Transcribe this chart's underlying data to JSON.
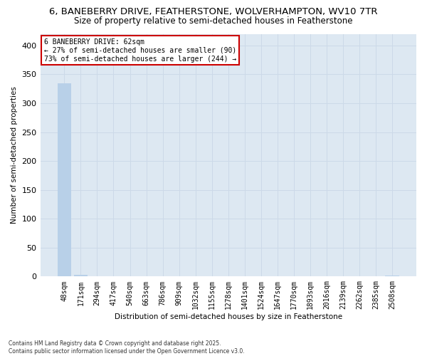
{
  "title1": "6, BANEBERRY DRIVE, FEATHERSTONE, WOLVERHAMPTON, WV10 7TR",
  "title2": "Size of property relative to semi-detached houses in Featherstone",
  "xlabel": "Distribution of semi-detached houses by size in Featherstone",
  "ylabel": "Number of semi-detached properties",
  "footnote": "Contains HM Land Registry data © Crown copyright and database right 2025.\nContains public sector information licensed under the Open Government Licence v3.0.",
  "bin_labels": [
    "48sqm",
    "171sqm",
    "294sqm",
    "417sqm",
    "540sqm",
    "663sqm",
    "786sqm",
    "909sqm",
    "1032sqm",
    "1155sqm",
    "1278sqm",
    "1401sqm",
    "1524sqm",
    "1647sqm",
    "1770sqm",
    "1893sqm",
    "2016sqm",
    "2139sqm",
    "2262sqm",
    "2385sqm",
    "2508sqm"
  ],
  "bar_values": [
    335,
    3,
    0,
    0,
    0,
    0,
    0,
    0,
    0,
    0,
    0,
    0,
    0,
    0,
    0,
    0,
    0,
    0,
    0,
    0,
    2
  ],
  "bar_color": "#b8d0e8",
  "annotation_text": "6 BANEBERRY DRIVE: 62sqm\n← 27% of semi-detached houses are smaller (90)\n73% of semi-detached houses are larger (244) →",
  "annotation_box_color": "#cc0000",
  "ylim": [
    0,
    420
  ],
  "yticks": [
    0,
    50,
    100,
    150,
    200,
    250,
    300,
    350,
    400
  ],
  "grid_color": "#ccd9e8",
  "bg_color": "#dde8f2",
  "fig_bg_color": "#ffffff",
  "title_fontsize": 9.5,
  "subtitle_fontsize": 8.5,
  "axis_label_fontsize": 7.5,
  "tick_fontsize": 7,
  "footnote_fontsize": 5.5
}
